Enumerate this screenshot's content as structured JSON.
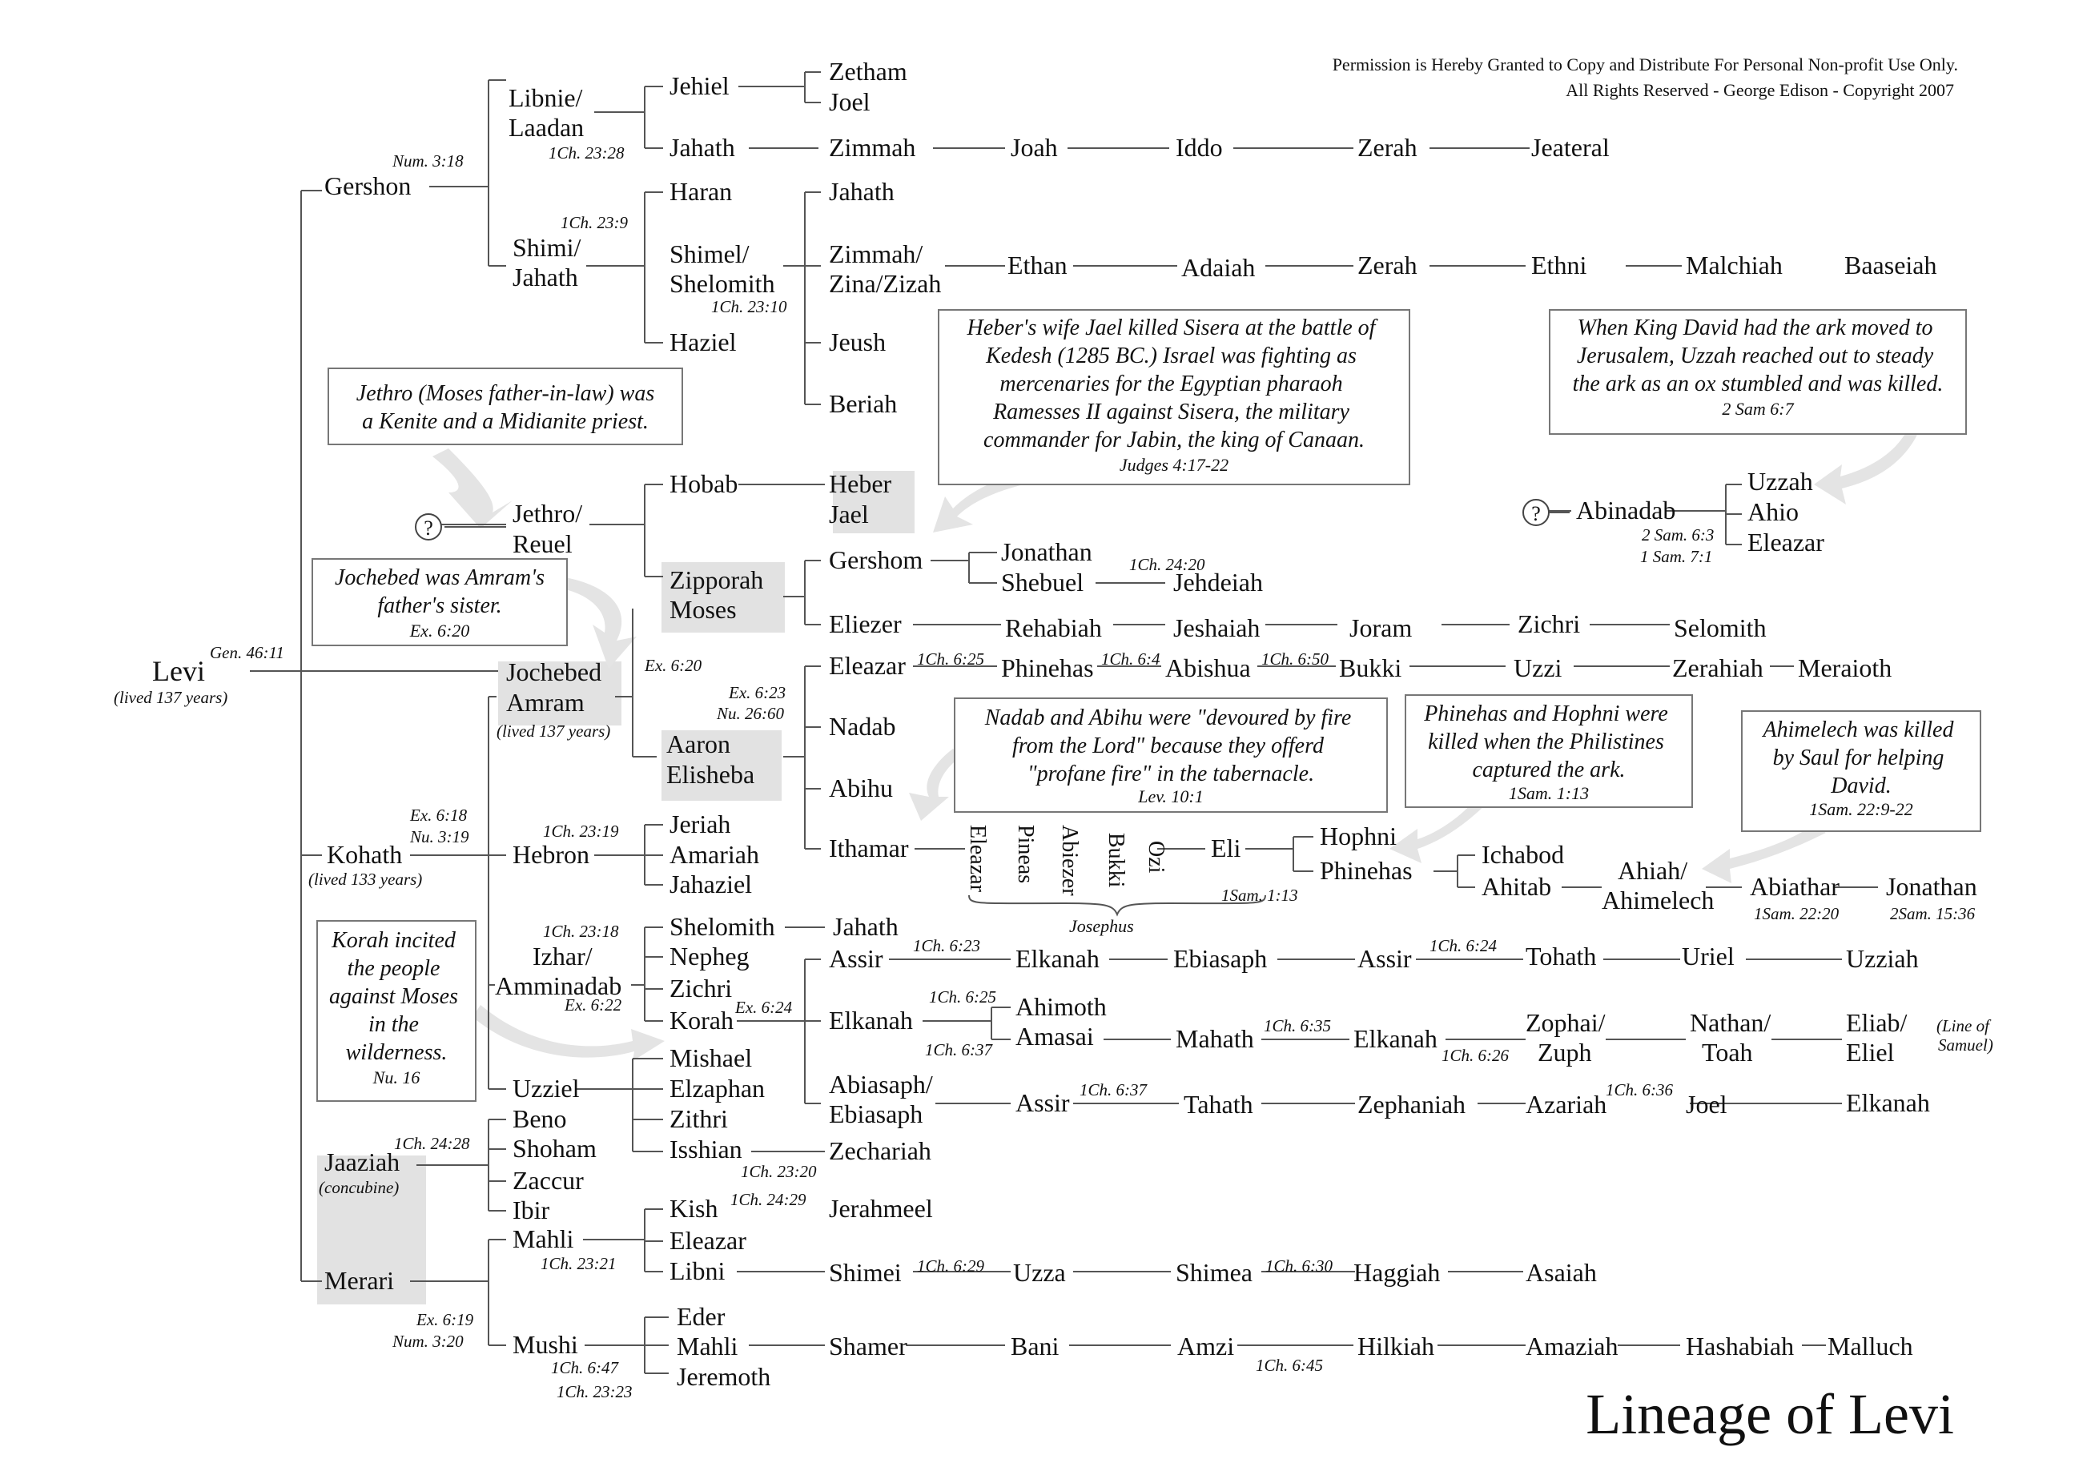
{
  "title": "Lineage of Levi",
  "permission": {
    "line1": "Permission is Hereby Granted to Copy and Distribute For Personal Non-profit Use Only.",
    "line2": "All Rights Reserved  -  George Edison  -  Copyright 2007"
  },
  "names": {
    "levi": "Levi",
    "gershon": "Gershon",
    "kohath": "Kohath",
    "merari": "Merari",
    "jaaziah": "Jaaziah",
    "libnie": "Libnie/",
    "laadan": "Laadan",
    "shimi": "Shimi/",
    "jahath_a": "Jahath",
    "jehiel": "Jehiel",
    "zetham": "Zetham",
    "joel_a": "Joel",
    "jahath_b": "Jahath",
    "zimmah_a": "Zimmah",
    "joah": "Joah",
    "iddo": "Iddo",
    "zerah_a": "Zerah",
    "jeateral": "Jeateral",
    "haran": "Haran",
    "shimel": "Shimel/",
    "shelomith_a": "Shelomith",
    "haziel": "Haziel",
    "jahath_c": "Jahath",
    "zimmah_b": "Zimmah/",
    "zina": "Zina/Zizah",
    "jeush": "Jeush",
    "beriah": "Beriah",
    "ethan": "Ethan",
    "adaiah": "Adaiah",
    "zerah_b": "Zerah",
    "ethni": "Ethni",
    "malchiah": "Malchiah",
    "baaseiah": "Baaseiah",
    "jethro": "Jethro/",
    "reuel": "Reuel",
    "hobab": "Hobab",
    "heber": "Heber",
    "jael": "Jael",
    "zipporah": "Zipporah",
    "moses": "Moses",
    "gershom": "Gershom",
    "jonathan_a": "Jonathan",
    "shebuel": "Shebuel",
    "jehdeiah": "Jehdeiah",
    "eliezer": "Eliezer",
    "rehabiah": "Rehabiah",
    "jeshaiah": "Jeshaiah",
    "joram": "Joram",
    "zichri_a": "Zichri",
    "selomith": "Selomith",
    "jochebed": "Jochebed",
    "amram": "Amram",
    "aaron": "Aaron",
    "elisheba": "Elisheba",
    "eleazar_a": "Eleazar",
    "phinehas_a": "Phinehas",
    "abishua": "Abishua",
    "bukki_a": "Bukki",
    "uzzi": "Uzzi",
    "zerahiah": "Zerahiah",
    "meraioth": "Meraioth",
    "nadab": "Nadab",
    "abihu": "Abihu",
    "ithamar": "Ithamar",
    "v_eleazar": "Eleazar",
    "v_pineas": "Pineas",
    "v_abiezer": "Abiezer",
    "v_bukki": "Bukki",
    "v_ozi": "Ozi",
    "josephus": "Josephus",
    "eli": "Eli",
    "hophni": "Hophni",
    "phinehas_b": "Phinehas",
    "ichabod": "Ichabod",
    "ahitab": "Ahitab",
    "ahiah": "Ahiah/",
    "ahimelech": "Ahimelech",
    "abiathar": "Abiathar",
    "jonathan_b": "Jonathan",
    "abinadab": "Abinadab",
    "uzzah": "Uzzah",
    "ahio": "Ahio",
    "eleazar_b": "Eleazar",
    "hebron": "Hebron",
    "jeriah": "Jeriah",
    "amariah": "Amariah",
    "jahaziel": "Jahaziel",
    "izhar": "Izhar/",
    "amminadab": "Amminadab",
    "shelomith_b": "Shelomith",
    "jahath_d": "Jahath",
    "nepheg": "Nepheg",
    "zichri_b": "Zichri",
    "korah": "Korah",
    "assir_a": "Assir",
    "elkanah_a": "Elkanah",
    "ebiasaph_a": "Ebiasaph",
    "assir_b": "Assir",
    "tohath": "Tohath",
    "uriel": "Uriel",
    "uzziah": "Uzziah",
    "elkanah_b": "Elkanah",
    "ahimoth": "Ahimoth",
    "amasai": "Amasai",
    "mahath": "Mahath",
    "elkanah_c": "Elkanah",
    "zophai": "Zophai/",
    "zuph": "Zuph",
    "nathan": "Nathan/",
    "toah": "Toah",
    "eliab": "Eliab/",
    "eliel": "Eliel",
    "abiasaph": "Abiasaph/",
    "ebiasaph_b": "Ebiasaph",
    "assir_c": "Assir",
    "tahath": "Tahath",
    "zephaniah": "Zephaniah",
    "azariah": "Azariah",
    "joel_b": "Joel",
    "elkanah_d": "Elkanah",
    "uzziel": "Uzziel",
    "mishael": "Mishael",
    "elzaphan": "Elzaphan",
    "zithri": "Zithri",
    "isshian": "Isshian",
    "zechariah": "Zechariah",
    "beno": "Beno",
    "shoham": "Shoham",
    "zaccur": "Zaccur",
    "ibir": "Ibir",
    "mahli_a": "Mahli",
    "kish": "Kish",
    "jerahmeel": "Jerahmeel",
    "eleazar_c": "Eleazar",
    "libni": "Libni",
    "shimei": "Shimei",
    "uzza": "Uzza",
    "shimea": "Shimea",
    "haggiah": "Haggiah",
    "asaiah": "Asaiah",
    "mushi": "Mushi",
    "eder": "Eder",
    "mahli_b": "Mahli",
    "jeremoth": "Jeremoth",
    "shamer": "Shamer",
    "bani": "Bani",
    "amzi": "Amzi",
    "hilkiah": "Hilkiah",
    "amaziah": "Amaziah",
    "hashabiah": "Hashabiah",
    "malluch": "Malluch",
    "q1": "?",
    "q2": "?"
  },
  "refs": {
    "gen4611": "Gen. 46:11",
    "levi_life": "(lived 137 years)",
    "num318": "Num. 3:18",
    "ch2328": "1Ch. 23:28",
    "ch239": "1Ch. 23:9",
    "ch2310": "1Ch. 23:10",
    "ex620a": "Ex. 6:20",
    "amram_life": "(lived 137 years)",
    "ex623": "Ex. 6:23",
    "nu2660": "Nu. 26:60",
    "ch625": "1Ch. 6:25",
    "ch64": "1Ch. 6:4",
    "ch650": "1Ch. 6:50",
    "ch2420": "1Ch. 24:20",
    "ex618": "Ex. 6:18",
    "nu319": "Nu. 3:19",
    "kohath_life": "(lived 133 years)",
    "ch2319": "1Ch. 23:19",
    "sam113a": "1Sam. 1:13",
    "sam2220": "1Sam. 22:20",
    "sam1536": "2Sam. 15:36",
    "sam63": "2 Sam. 6:3",
    "sam71": "1 Sam. 7:1",
    "ch2318": "1Ch. 23:18",
    "ex622": "Ex. 6:22",
    "ex624": "Ex. 6:24",
    "ch623": "1Ch. 6:23",
    "ch624": "1Ch. 6:24",
    "ch625b": "1Ch. 6:25",
    "ch637a": "1Ch. 6:37",
    "ch635": "1Ch. 6:35",
    "ch626": "1Ch. 6:26",
    "line_samuel_1": "(Line of",
    "line_samuel_2": "Samuel)",
    "ch637b": "1Ch. 6:37",
    "ch636": "1Ch. 6:36",
    "ch2320": "1Ch. 23:20",
    "ch2428": "1Ch. 24:28",
    "concubine": "(concubine)",
    "ch2321": "1Ch. 23:21",
    "ch2429": "1Ch. 24:29",
    "ch629": "1Ch. 6:29",
    "ch630": "1Ch. 6:30",
    "ex619": "Ex. 6:19",
    "num320": "Num. 3:20",
    "ch647": "1Ch. 6:47",
    "ch2323": "1Ch. 23:23",
    "ch645": "1Ch. 6:45"
  },
  "notes": {
    "jethro": {
      "lines": [
        "Jethro (Moses father-in-law) was",
        "a Kenite and a Midianite priest."
      ]
    },
    "jochebed": {
      "lines": [
        "Jochebed was Amram's",
        "father's sister."
      ],
      "ref": "Ex. 6:20"
    },
    "heber": {
      "lines": [
        "Heber's wife Jael killed Sisera at the battle of",
        "Kedesh (1285 BC.)  Israel was fighting as",
        "mercenaries for the Egyptian pharaoh",
        "Ramesses II against Sisera, the military",
        "commander for Jabin, the king of Canaan."
      ],
      "ref": "Judges 4:17-22"
    },
    "uzzah": {
      "lines": [
        "When King David had the ark moved to",
        "Jerusalem, Uzzah reached out to steady",
        "the ark as an ox stumbled and was killed."
      ],
      "ref": "2 Sam 6:7"
    },
    "nadab": {
      "lines": [
        "Nadab and Abihu were \"devoured by fire",
        "from the Lord\" because they offerd",
        "\"profane fire\" in the tabernacle."
      ],
      "ref": "Lev. 10:1"
    },
    "phinehas": {
      "lines": [
        "Phinehas and Hophni were",
        "killed when the Philistines",
        "captured the ark."
      ],
      "ref": "1Sam. 1:13"
    },
    "ahimelech": {
      "lines": [
        "Ahimelech was killed",
        "by Saul for helping",
        "David."
      ],
      "ref": "1Sam. 22:9-22"
    },
    "korah": {
      "lines": [
        "Korah incited",
        "the people",
        "against Moses",
        "in the",
        "wilderness."
      ],
      "ref": "Nu. 16"
    }
  }
}
